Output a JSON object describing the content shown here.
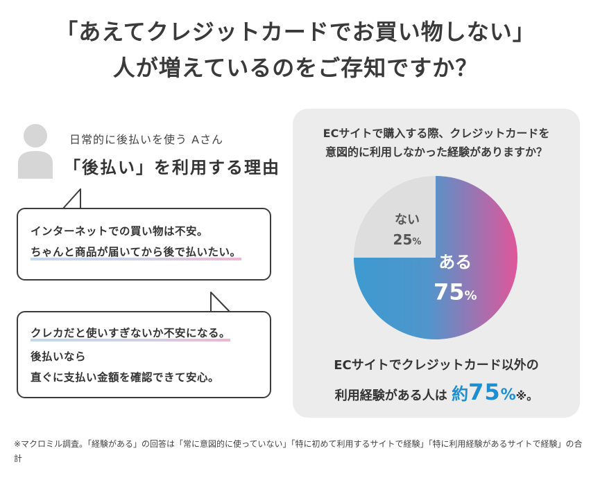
{
  "title": {
    "line1": "「あえてクレジットカードでお買い物しない」",
    "line2": "人が増えているのをご存知ですか？"
  },
  "persona": {
    "label": "日常的に後払いを使う Aさん",
    "reason_heading": "「後払い」を利用する理由",
    "avatar_icon": "person-icon"
  },
  "bubbles": [
    {
      "lines": [
        "インターネットでの買い物は不安。",
        "ちゃんと商品が届いてから後で払いたい。"
      ]
    },
    {
      "lines": [
        "クレカだと使いすぎないか不安になる。",
        "後払いなら",
        "直ぐに支払い金額を確認できて安心。"
      ]
    }
  ],
  "panel": {
    "question_line1": "ECサイトで購入する際、クレジットカードを",
    "question_line2": "意図的に利用しなかった経験がありますか？",
    "summary_line1": "ECサイトでクレジットカード以外の",
    "summary_prefix": "利用経験がある人は",
    "summary_approx": "約",
    "summary_value": "75",
    "summary_pct": "%",
    "summary_suffix": "※。"
  },
  "chart_data": {
    "type": "pie",
    "slices": [
      {
        "label": "ある",
        "value": 75,
        "display": "75",
        "unit": "%",
        "color_start": "#3d9ad0",
        "color_end": "#e0569a"
      },
      {
        "label": "ない",
        "value": 25,
        "display": "25",
        "unit": "%",
        "color": "#dedede"
      }
    ]
  },
  "footnote": "※マクロミル調査。「経験がある」の回答は「常に意図的に使っていない」「特に初めて利用するサイトで経験」「特に利用経験があるサイトで経験」の合計",
  "colors": {
    "accent_blue": "#1e8ed3",
    "panel_bg": "#ececec",
    "highlight_start": "#c3d8ea",
    "highlight_end": "#efb5d2"
  }
}
